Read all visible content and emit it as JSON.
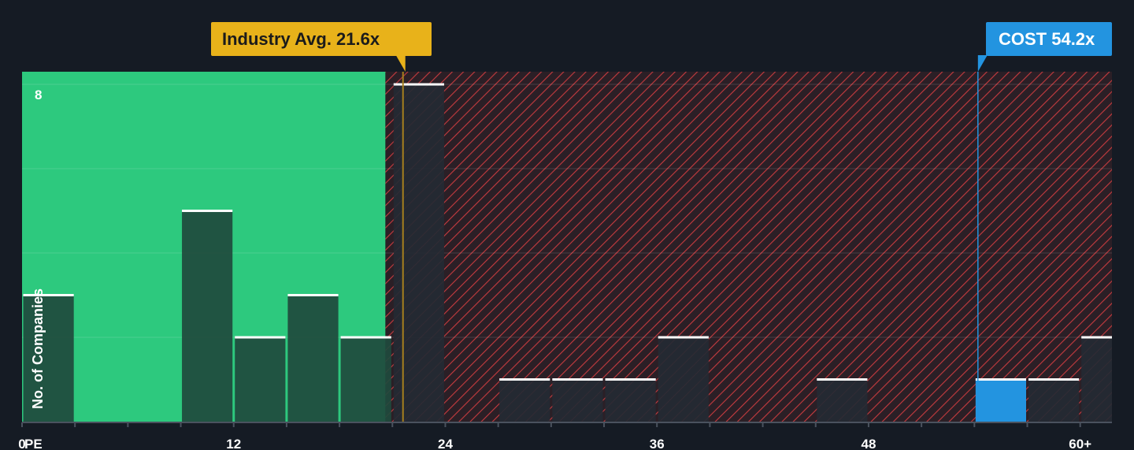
{
  "chart_data": {
    "type": "bar",
    "xlabel": "PE",
    "ylabel": "No. of Companies",
    "xlim": [
      0,
      61.8
    ],
    "ylim": [
      0,
      8.3
    ],
    "x_ticks": [
      0,
      12,
      24,
      36,
      48,
      "60+"
    ],
    "y_ticks": [
      8
    ],
    "grid": true,
    "bin_width": 3,
    "bins": [
      {
        "start": 0,
        "count": 3
      },
      {
        "start": 9,
        "count": 5
      },
      {
        "start": 12,
        "count": 2
      },
      {
        "start": 15,
        "count": 3
      },
      {
        "start": 18,
        "count": 2
      },
      {
        "start": 21,
        "count": 8
      },
      {
        "start": 27,
        "count": 1
      },
      {
        "start": 30,
        "count": 1
      },
      {
        "start": 33,
        "count": 1
      },
      {
        "start": 36,
        "count": 2
      },
      {
        "start": 45,
        "count": 1
      },
      {
        "start": 54,
        "count": 1,
        "highlight": true
      },
      {
        "start": 57,
        "count": 1
      },
      {
        "start": 60,
        "count": 2
      }
    ],
    "fair_zone_max": 20.6,
    "industry_avg": {
      "label": "Industry Avg. 21.6x",
      "value": 21.6
    },
    "company": {
      "label": "COST 54.2x",
      "value": 54.2
    },
    "colors": {
      "background": "#151b24",
      "fair_zone": "#2dc97e",
      "bar_fair": "#1f4a3d",
      "bar_over": "#242a33",
      "over_zone_bg": "#2b1f26",
      "hatch": "#c63b3f",
      "highlight_bar": "#2394e0",
      "industry_callout": "#e8b21a",
      "industry_line": "#a57f1e",
      "company_callout": "#2394e0",
      "bar_cap": "#ffffff"
    }
  }
}
